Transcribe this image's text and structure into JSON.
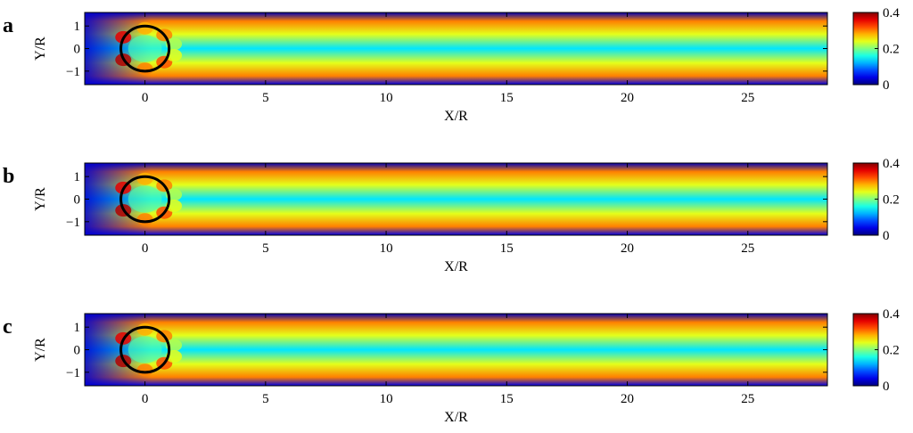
{
  "chart_data": [
    {
      "type": "heatmap",
      "panel_label": "a",
      "xlabel": "X/R",
      "ylabel": "Y/R",
      "xlim": [
        -2.5,
        28.3
      ],
      "ylim": [
        -1.6,
        1.6
      ],
      "xticks": [
        0,
        5,
        10,
        15,
        20,
        25
      ],
      "yticks": [
        1,
        0,
        -1
      ],
      "colorbar": {
        "min": 0,
        "max": 0.4,
        "ticks": [
          0.4,
          0.2,
          0
        ]
      },
      "colormap": "jet",
      "circle": {
        "cx": 0,
        "cy": 0,
        "r": 1
      }
    },
    {
      "type": "heatmap",
      "panel_label": "b",
      "xlabel": "X/R",
      "ylabel": "Y/R",
      "xlim": [
        -2.5,
        28.3
      ],
      "ylim": [
        -1.6,
        1.6
      ],
      "xticks": [
        0,
        5,
        10,
        15,
        20,
        25
      ],
      "yticks": [
        1,
        0,
        -1
      ],
      "colorbar": {
        "min": 0,
        "max": 0.4,
        "ticks": [
          0.4,
          0.2,
          0
        ]
      },
      "colormap": "jet",
      "circle": {
        "cx": 0,
        "cy": 0,
        "r": 1
      }
    },
    {
      "type": "heatmap",
      "panel_label": "c",
      "xlabel": "X/R",
      "ylabel": "Y/R",
      "xlim": [
        -2.5,
        28.3
      ],
      "ylim": [
        -1.6,
        1.6
      ],
      "xticks": [
        0,
        5,
        10,
        15,
        20,
        25
      ],
      "yticks": [
        1,
        0,
        -1
      ],
      "colorbar": {
        "min": 0,
        "max": 0.4,
        "ticks": [
          0.4,
          0.2,
          0
        ]
      },
      "colormap": "jet",
      "circle": {
        "cx": 0,
        "cy": 0,
        "r": 1
      }
    }
  ]
}
